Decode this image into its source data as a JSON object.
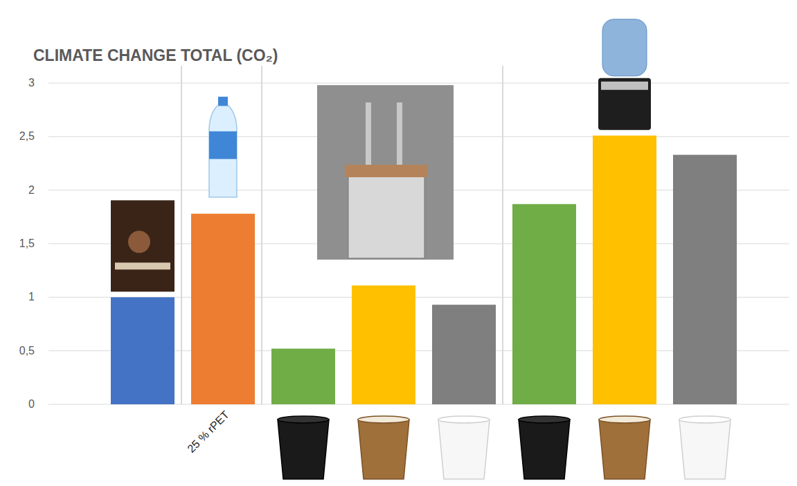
{
  "chart_data": {
    "type": "bar",
    "title": "CLIMATE CHANGE TOTAL (CO₂)",
    "categories": [
      null,
      "25 % rPET",
      null,
      null,
      null,
      null,
      null,
      null
    ],
    "values": [
      1.0,
      1.78,
      0.52,
      1.11,
      0.93,
      1.87,
      2.51,
      2.33
    ],
    "colors": [
      "#4472c4",
      "#ed7d31",
      "#70ad47",
      "#ffc000",
      "#7f7f7f",
      "#70ad47",
      "#ffc000",
      "#7f7f7f"
    ],
    "ylim": [
      0,
      3
    ],
    "yticks": [
      0,
      {
        "value": 0.5,
        "label": "0,5"
      },
      1,
      {
        "value": 1.5,
        "label": "1,5"
      },
      2,
      {
        "value": 2.5,
        "label": "2,5"
      },
      3
    ],
    "grid": true
  }
}
